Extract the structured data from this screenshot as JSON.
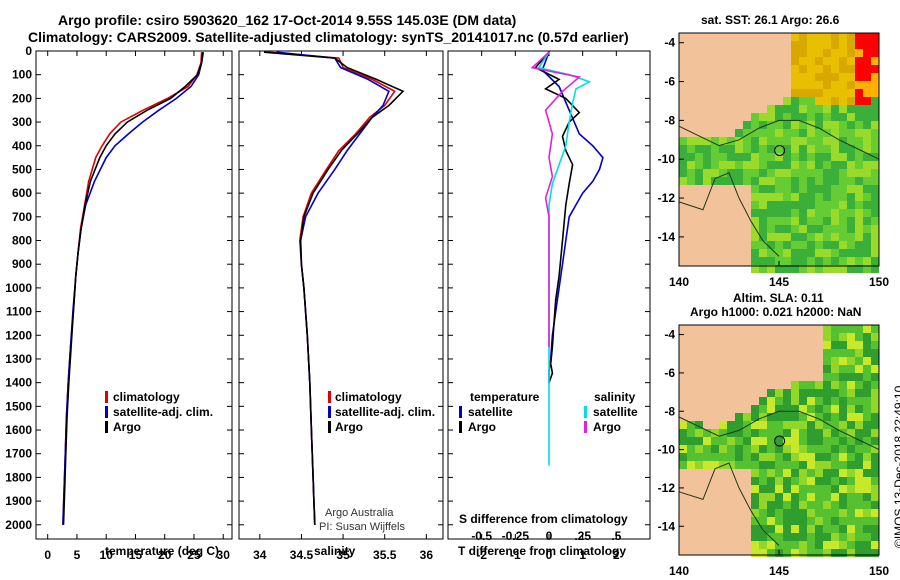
{
  "header": {
    "title_line1": "Argo profile: csiro 5903620_162 17-Oct-2014 9.55S 145.03E (DM data)",
    "title_line2": "Climatology: CARS2009. Satellite-adjusted climatology: synTS_20141017.nc (0.57d earlier)"
  },
  "colors": {
    "climatology": "#e00000",
    "satellite": "#0000cc",
    "argo": "#000000",
    "sat_sal": "#00e0e0",
    "argo_sal": "#e020e0",
    "land": "#f2c29a"
  },
  "chart_data": [
    {
      "type": "line",
      "title": "temperature profile",
      "xlabel": "temperature (deg C)",
      "ylabel": "",
      "xlim": [
        -2,
        31.5
      ],
      "ylim": [
        0,
        2060
      ],
      "xticks": [
        0,
        5,
        10,
        15,
        20,
        25,
        30
      ],
      "yticks": [
        0,
        100,
        200,
        300,
        400,
        500,
        600,
        700,
        800,
        900,
        1000,
        1100,
        1200,
        1300,
        1400,
        1500,
        1600,
        1700,
        1800,
        1900,
        2000
      ],
      "legend": [
        "climatology",
        "satellite-adj. clim.",
        "Argo"
      ],
      "series": [
        {
          "name": "climatology",
          "color": "#e00000",
          "x": [
            26.3,
            26.2,
            25.5,
            24.0,
            20.5,
            16.3,
            12.5,
            10.6,
            9.3,
            8.2,
            7.0,
            6.3,
            5.6,
            5.2,
            4.8,
            4.4,
            3.9,
            3.5,
            3.2,
            3.0,
            2.8,
            2.6
          ],
          "y": [
            5,
            50,
            100,
            150,
            200,
            250,
            300,
            350,
            400,
            450,
            550,
            650,
            750,
            850,
            950,
            1100,
            1250,
            1400,
            1550,
            1700,
            1850,
            2000
          ]
        },
        {
          "name": "satellite-adj. clim.",
          "color": "#0000cc",
          "x": [
            26.6,
            26.3,
            25.8,
            24.5,
            22.0,
            19.0,
            16.2,
            13.8,
            11.5,
            10.0,
            8.0,
            6.5,
            5.7,
            5.2,
            4.8,
            4.3,
            3.9,
            3.5,
            3.2,
            3.0,
            2.8,
            2.6
          ],
          "y": [
            5,
            50,
            100,
            150,
            200,
            250,
            300,
            350,
            400,
            450,
            550,
            650,
            750,
            850,
            950,
            1100,
            1250,
            1400,
            1550,
            1700,
            1850,
            2000
          ]
        },
        {
          "name": "Argo",
          "color": "#000000",
          "x": [
            26.5,
            26.3,
            25.6,
            23.5,
            21.0,
            17.0,
            13.6,
            11.5,
            10.0,
            8.9,
            7.3,
            6.4,
            5.7,
            5.2,
            4.8,
            4.4,
            4.0,
            3.6,
            3.3,
            3.1,
            2.9,
            2.7
          ],
          "y": [
            5,
            50,
            100,
            150,
            200,
            250,
            300,
            350,
            400,
            450,
            550,
            650,
            750,
            850,
            950,
            1100,
            1250,
            1400,
            1550,
            1700,
            1850,
            2000
          ]
        }
      ]
    },
    {
      "type": "line",
      "title": "salinity profile",
      "xlabel": "salinity",
      "xlim": [
        33.75,
        36.2
      ],
      "ylim": [
        0,
        2060
      ],
      "xticks": [
        34,
        34.5,
        35,
        35.5,
        36
      ],
      "legend": [
        "climatology",
        "satellite-adj. clim.",
        "Argo"
      ],
      "series": [
        {
          "name": "climatology",
          "color": "#e00000",
          "x": [
            34.1,
            34.95,
            35.0,
            35.35,
            35.62,
            35.5,
            35.32,
            35.15,
            34.95,
            34.8,
            34.62,
            34.52,
            34.48,
            34.5,
            34.53,
            34.57,
            34.6,
            34.62,
            34.64,
            34.65,
            34.66
          ],
          "y": [
            5,
            30,
            70,
            120,
            170,
            230,
            280,
            350,
            420,
            500,
            600,
            700,
            800,
            900,
            1000,
            1200,
            1400,
            1600,
            1800,
            1900,
            2000
          ]
        },
        {
          "name": "satellite-adj. clim.",
          "color": "#0000cc",
          "x": [
            34.2,
            34.9,
            34.97,
            35.3,
            35.55,
            35.48,
            35.35,
            35.2,
            35.05,
            34.9,
            34.7,
            34.55,
            34.49,
            34.5,
            34.53,
            34.57,
            34.6,
            34.62,
            34.64,
            34.65,
            34.66
          ],
          "y": [
            5,
            30,
            70,
            120,
            170,
            230,
            280,
            350,
            420,
            500,
            600,
            700,
            800,
            900,
            1000,
            1200,
            1400,
            1600,
            1800,
            1900,
            2000
          ]
        },
        {
          "name": "Argo",
          "color": "#000000",
          "x": [
            34.05,
            34.9,
            35.05,
            35.4,
            35.72,
            35.55,
            35.35,
            35.17,
            34.98,
            34.82,
            34.64,
            34.53,
            34.49,
            34.5,
            34.53,
            34.57,
            34.6,
            34.62,
            34.64,
            34.65,
            34.66
          ],
          "y": [
            5,
            30,
            70,
            120,
            170,
            230,
            280,
            350,
            420,
            500,
            600,
            700,
            800,
            900,
            1000,
            1200,
            1400,
            1600,
            1800,
            1900,
            2000
          ]
        }
      ],
      "annotation_lines": [
        "Argo Australia",
        "PI: Susan Wijffels"
      ]
    },
    {
      "type": "line",
      "title": "difference from climatology",
      "xlabel": "T difference from climatology",
      "xlabel_top": "S difference from climatology",
      "xlim": [
        -3,
        3
      ],
      "ylim": [
        0,
        2060
      ],
      "xticks": [
        -2,
        -1,
        0,
        1,
        2
      ],
      "xticks_salinity": [
        -0.5,
        -0.25,
        0,
        0.25,
        0.5
      ],
      "legend_left": {
        "header": "temperature",
        "items": [
          "satellite",
          "Argo"
        ]
      },
      "legend_right": {
        "header": "salinity",
        "items": [
          "satellite",
          "Argo"
        ]
      },
      "series": [
        {
          "name": "T satellite",
          "color": "#0000cc",
          "x": [
            0,
            -0.2,
            0.3,
            0.6,
            0.9,
            1.3,
            1.6,
            1.5,
            1.3,
            1.0,
            0.8,
            0.6,
            0.5,
            0.4,
            0.3,
            0.2,
            0.1,
            0.05,
            0,
            0
          ],
          "y": [
            5,
            80,
            150,
            250,
            350,
            400,
            450,
            500,
            550,
            600,
            650,
            700,
            800,
            900,
            1000,
            1100,
            1200,
            1300,
            1350,
            1400
          ]
        },
        {
          "name": "T Argo",
          "color": "#000000",
          "x": [
            0,
            -0.4,
            0.3,
            -0.1,
            0.5,
            0.9,
            0.6,
            0.4,
            0.5,
            0.7,
            0.6,
            0.5,
            0.4,
            0.3,
            0.2,
            0.15,
            0.1,
            0.05,
            0.1,
            0.0
          ],
          "y": [
            5,
            70,
            120,
            160,
            200,
            260,
            300,
            360,
            420,
            480,
            560,
            650,
            800,
            950,
            1050,
            1150,
            1250,
            1320,
            1360,
            1400
          ]
        },
        {
          "name": "S satellite",
          "color": "#00e0e0",
          "x": [
            0,
            -0.3,
            0.6,
            1.2,
            0.8,
            0.7,
            0.6,
            0.5,
            0.3,
            0.1,
            0.0,
            0,
            0,
            0,
            0,
            0,
            0,
            0,
            0,
            0,
            0
          ],
          "y": [
            5,
            70,
            100,
            130,
            160,
            220,
            300,
            400,
            480,
            560,
            650,
            750,
            900,
            1050,
            1200,
            1300,
            1400,
            1500,
            1600,
            1700,
            1750
          ]
        },
        {
          "name": "S Argo",
          "color": "#e020e0",
          "x": [
            0,
            -0.5,
            0.9,
            0.4,
            -0.1,
            0.1,
            0.0,
            0.1,
            -0.1,
            0,
            0,
            0,
            0,
            0
          ],
          "y": [
            5,
            70,
            110,
            170,
            250,
            350,
            450,
            530,
            620,
            700,
            800,
            1000,
            1200,
            1250
          ]
        }
      ]
    },
    {
      "type": "heatmap",
      "title": "sat. SST: 26.1 Argo: 26.6",
      "xlim": [
        140,
        150
      ],
      "ylim": [
        -15.5,
        -3.5
      ],
      "xticks": [
        140,
        145,
        150
      ],
      "yticks": [
        -4,
        -6,
        -8,
        -10,
        -12,
        -14
      ]
    },
    {
      "type": "heatmap",
      "title_line1": "Altim. SLA: 0.11",
      "title_line2": "Argo h1000: 0.021 h2000: NaN",
      "xlim": [
        140,
        150
      ],
      "ylim": [
        -15.5,
        -3.5
      ],
      "xticks": [
        140,
        145,
        150
      ],
      "yticks": [
        -4,
        -6,
        -8,
        -10,
        -12,
        -14
      ]
    }
  ],
  "footer_credit": "©IMOS 13-Dec-2018 22:49:10"
}
